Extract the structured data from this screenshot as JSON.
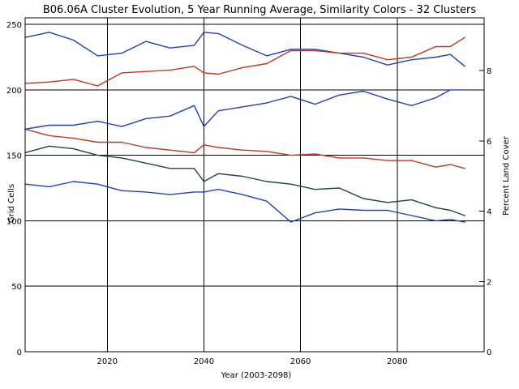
{
  "chart_data": {
    "type": "line",
    "title": "B06.06A Cluster Evolution, 5 Year Running Average, Similarity Colors - 32 Clusters",
    "xlabel": "Year (2003-2098)",
    "ylabel": "Grid Cells",
    "y2label": "Percent Land Cover",
    "xlim": [
      2003,
      2098
    ],
    "ylim": [
      0,
      255
    ],
    "y2lim": [
      0,
      9.5
    ],
    "xticks": [
      2020,
      2040,
      2060,
      2080
    ],
    "yticks": [
      0,
      50,
      100,
      150,
      200,
      250
    ],
    "y2ticks": [
      0,
      2,
      4,
      6,
      8
    ],
    "grid": true,
    "x": [
      2003,
      2008,
      2013,
      2018,
      2023,
      2028,
      2033,
      2038,
      2040,
      2043,
      2048,
      2053,
      2058,
      2063,
      2068,
      2073,
      2078,
      2083,
      2088,
      2091,
      2094
    ],
    "series": [
      {
        "color": "#2040c0",
        "values": [
          240,
          244,
          238,
          226,
          228,
          237,
          232,
          234,
          244,
          243,
          234,
          226,
          231,
          231,
          228,
          225,
          219,
          223,
          225,
          227,
          218
        ]
      },
      {
        "color": "#c03820",
        "values": [
          205,
          206,
          208,
          203,
          213,
          214,
          215,
          218,
          213,
          212,
          217,
          220,
          230,
          230,
          228,
          228,
          223,
          225,
          233,
          233,
          240
        ]
      },
      {
        "color": "#2040c0",
        "values": [
          170,
          173,
          173,
          176,
          172,
          178,
          180,
          188,
          172,
          184,
          187,
          190,
          195,
          189,
          196,
          199,
          193,
          188,
          194,
          200,
          200
        ]
      },
      {
        "color": "#c03820",
        "values": [
          170,
          165,
          163,
          160,
          160,
          156,
          154,
          152,
          158,
          156,
          154,
          153,
          150,
          151,
          148,
          148,
          146,
          146,
          141,
          143,
          140
        ]
      },
      {
        "color": "#20482a",
        "values": [
          152,
          157,
          155,
          150,
          148,
          144,
          140,
          140,
          130,
          136,
          134,
          130,
          128,
          124,
          125,
          117,
          114,
          116,
          110,
          108,
          104
        ]
      },
      {
        "color": "#2040c0",
        "values": [
          128,
          126,
          130,
          128,
          123,
          122,
          120,
          122,
          122,
          124,
          120,
          115,
          99,
          106,
          109,
          108,
          108,
          104,
          100,
          101,
          99
        ]
      }
    ]
  }
}
